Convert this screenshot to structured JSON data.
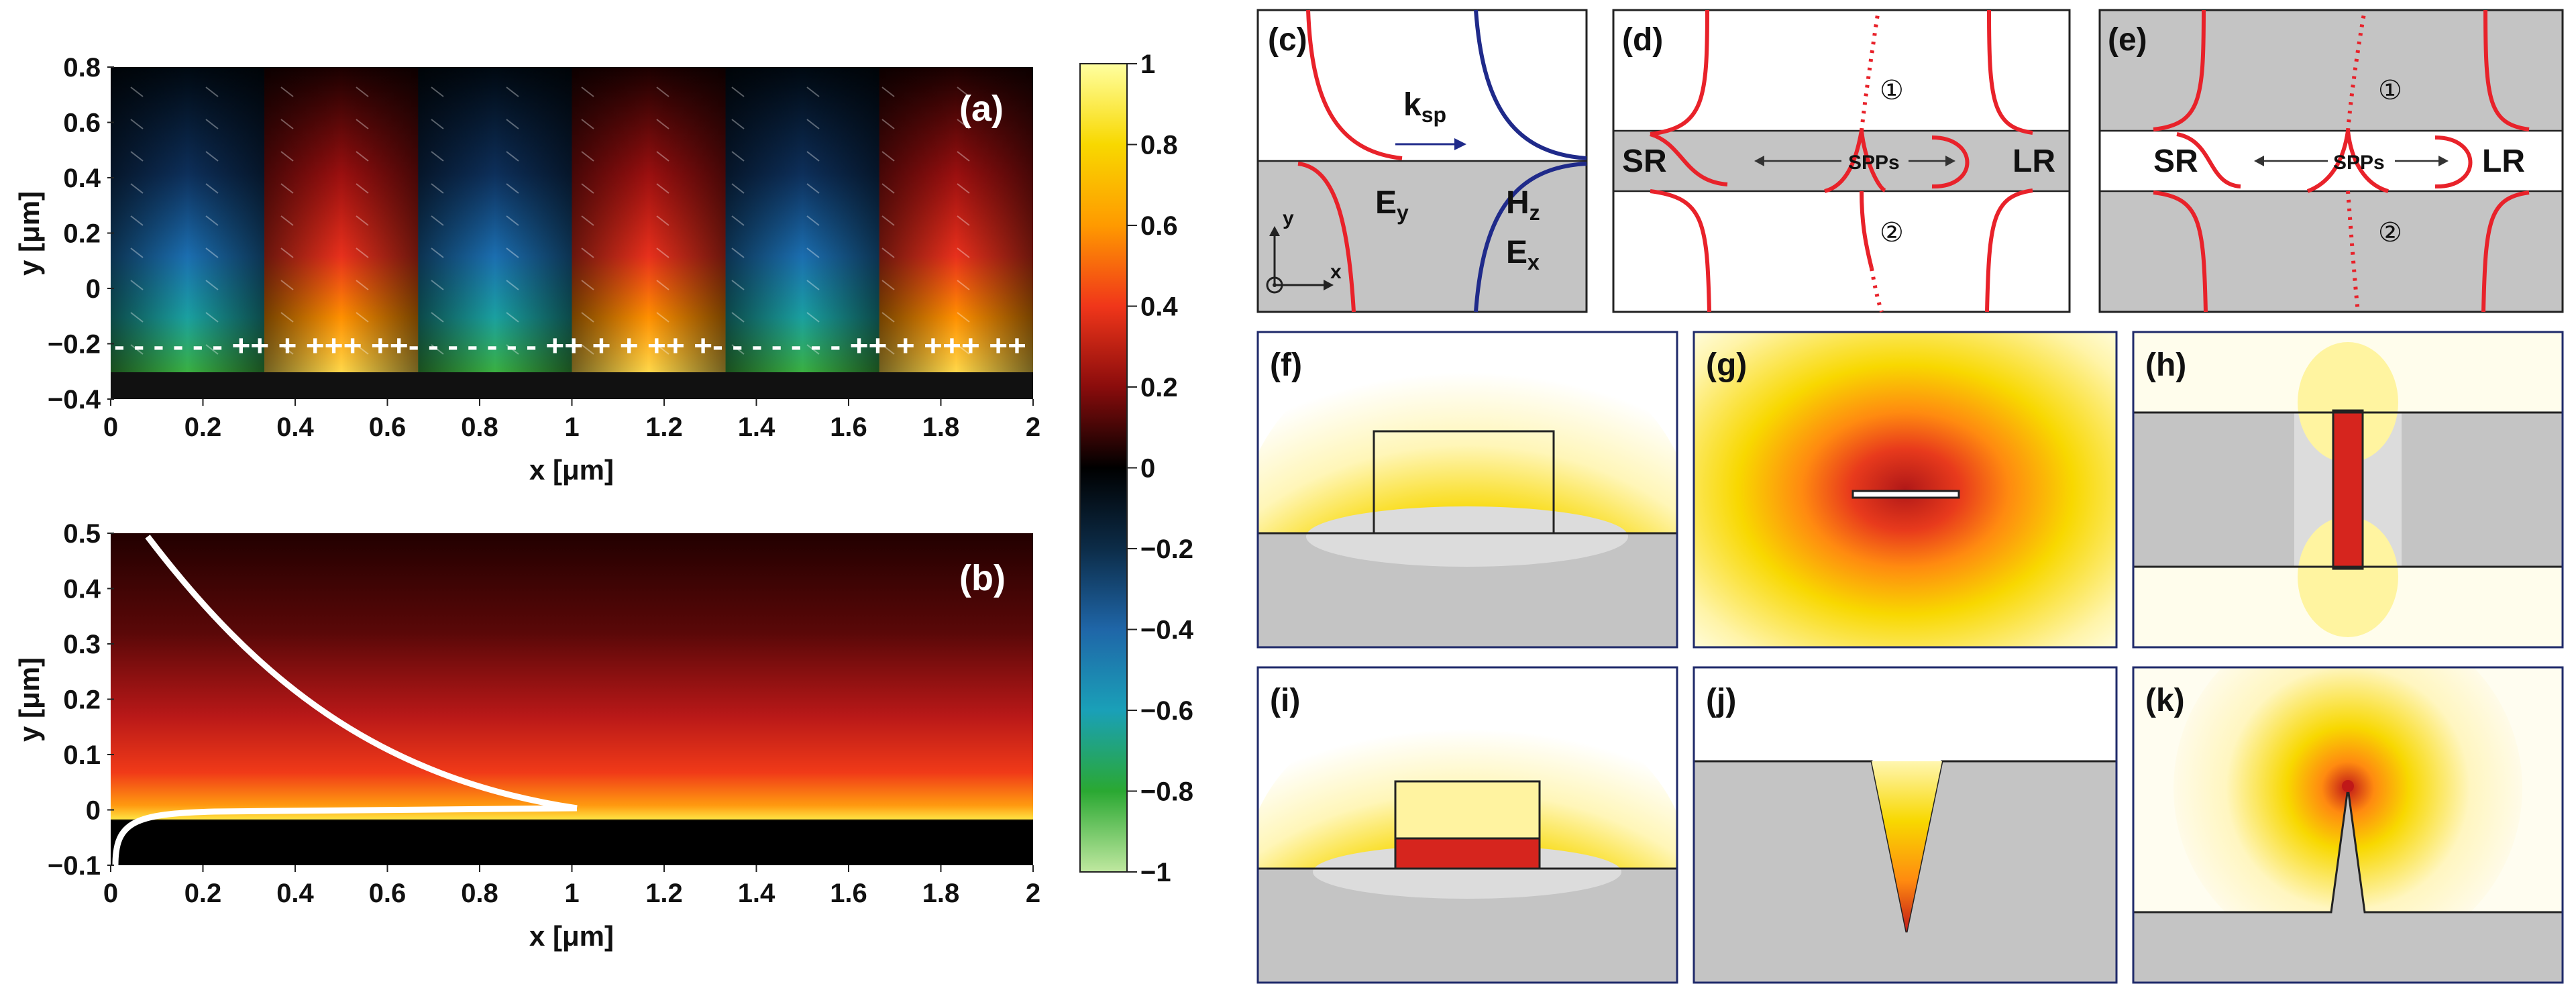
{
  "colors": {
    "red_curve": "#e8222a",
    "blue_curve": "#1f2a8a",
    "metal_gray": "#c4c4c4",
    "light_gray": "#dcdcdc"
  },
  "colorbar": {
    "ticks": [
      "1",
      "0.8",
      "0.6",
      "0.4",
      "0.2",
      "0",
      "−0.2",
      "−0.4",
      "−0.6",
      "−0.8",
      "−1"
    ]
  },
  "panel_a": {
    "label": "(a)",
    "xlabel": "x [μm]",
    "ylabel": "y [μm]",
    "xticks": [
      "0",
      "0.2",
      "0.4",
      "0.6",
      "0.8",
      "1",
      "1.2",
      "1.4",
      "1.6",
      "1.8",
      "2"
    ],
    "yticks": [
      "0.8",
      "0.6",
      "0.4",
      "0.2",
      "0",
      "−0.2",
      "−0.4"
    ],
    "charges": "- - - - - - ++  + +++  ++- - - - - - - ++ + + ++ +- - - - - - - ++ + +++ ++"
  },
  "panel_b": {
    "label": "(b)",
    "xlabel": "x [μm]",
    "ylabel": "y [μm]",
    "xticks": [
      "0",
      "0.2",
      "0.4",
      "0.6",
      "0.8",
      "1",
      "1.2",
      "1.4",
      "1.6",
      "1.8",
      "2"
    ],
    "yticks": [
      "0.5",
      "0.4",
      "0.3",
      "0.2",
      "0.1",
      "0",
      "−0.1"
    ]
  },
  "panel_c": {
    "label": "(c)",
    "k_main": "k",
    "k_sub": "sp",
    "ey_main": "E",
    "ey_sub": "y",
    "hz_main": "H",
    "hz_sub": "z",
    "ex_main": "E",
    "ex_sub": "x",
    "axis_y": "y",
    "axis_x": "x"
  },
  "panel_d": {
    "label": "(d)",
    "sr": "SR",
    "lr": "LR",
    "spps": "SPPs",
    "mode1": "①",
    "mode2": "②"
  },
  "panel_e": {
    "label": "(e)",
    "sr": "SR",
    "lr": "LR",
    "spps": "SPPs",
    "mode1": "①",
    "mode2": "②"
  },
  "panels_fk": {
    "f": "(f)",
    "g": "(g)",
    "h": "(h)",
    "i": "(i)",
    "j": "(j)",
    "k": "(k)"
  }
}
